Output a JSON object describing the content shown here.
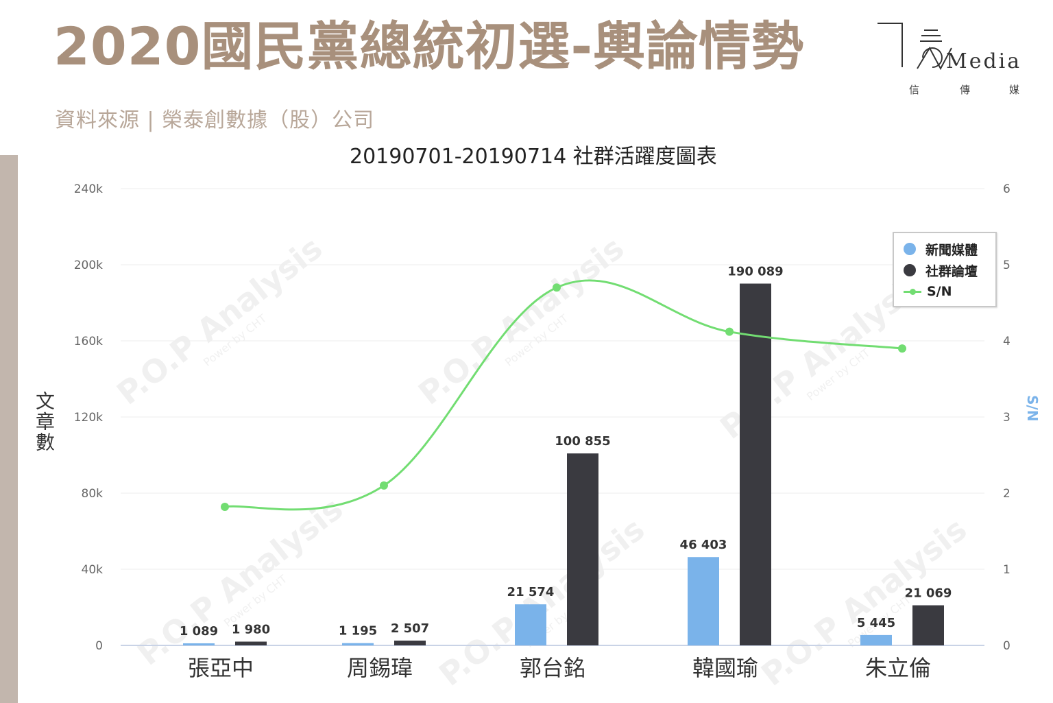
{
  "header": {
    "title": "2020國民黨總統初選-輿論情勢",
    "source": "資料來源 | 榮泰創數據（股）公司"
  },
  "logo": {
    "text": "Media",
    "sub": [
      "信",
      "傳",
      "媒"
    ]
  },
  "watermark": "P.O.P Analysis",
  "watermark_sub": "Power by CHT",
  "colors": {
    "news": "#7ab3ea",
    "social": "#3a3a40",
    "sn": "#72dd72",
    "title": "#a8907c"
  },
  "chart_data": {
    "type": "bar",
    "title": "20190701-20190714 社群活躍度圖表",
    "categories": [
      "張亞中",
      "周錫瑋",
      "郭台銘",
      "韓國瑜",
      "朱立倫"
    ],
    "series": [
      {
        "name": "新聞媒體",
        "type": "bar",
        "axis": "left",
        "values": [
          1089,
          1195,
          21574,
          46403,
          5445
        ],
        "labels": [
          "1 089",
          "1 195",
          "21 574",
          "46 403",
          "5 445"
        ]
      },
      {
        "name": "社群論壇",
        "type": "bar",
        "axis": "left",
        "values": [
          1980,
          2507,
          100855,
          190089,
          21069
        ],
        "labels": [
          "1 980",
          "2 507",
          "100 855",
          "190 089",
          "21 069"
        ]
      },
      {
        "name": "S/N",
        "type": "line",
        "axis": "right",
        "values": [
          1.82,
          2.1,
          4.7,
          4.12,
          3.9
        ]
      }
    ],
    "ylabel": "文章數",
    "y2label": "S/N",
    "ylim": [
      0,
      240000
    ],
    "y2lim": [
      0,
      6
    ],
    "yticks": [
      "0",
      "40k",
      "80k",
      "120k",
      "160k",
      "200k",
      "240k"
    ],
    "y2ticks": [
      "0",
      "1",
      "2",
      "3",
      "4",
      "5",
      "6"
    ],
    "grid": true,
    "legend": "top-right"
  }
}
